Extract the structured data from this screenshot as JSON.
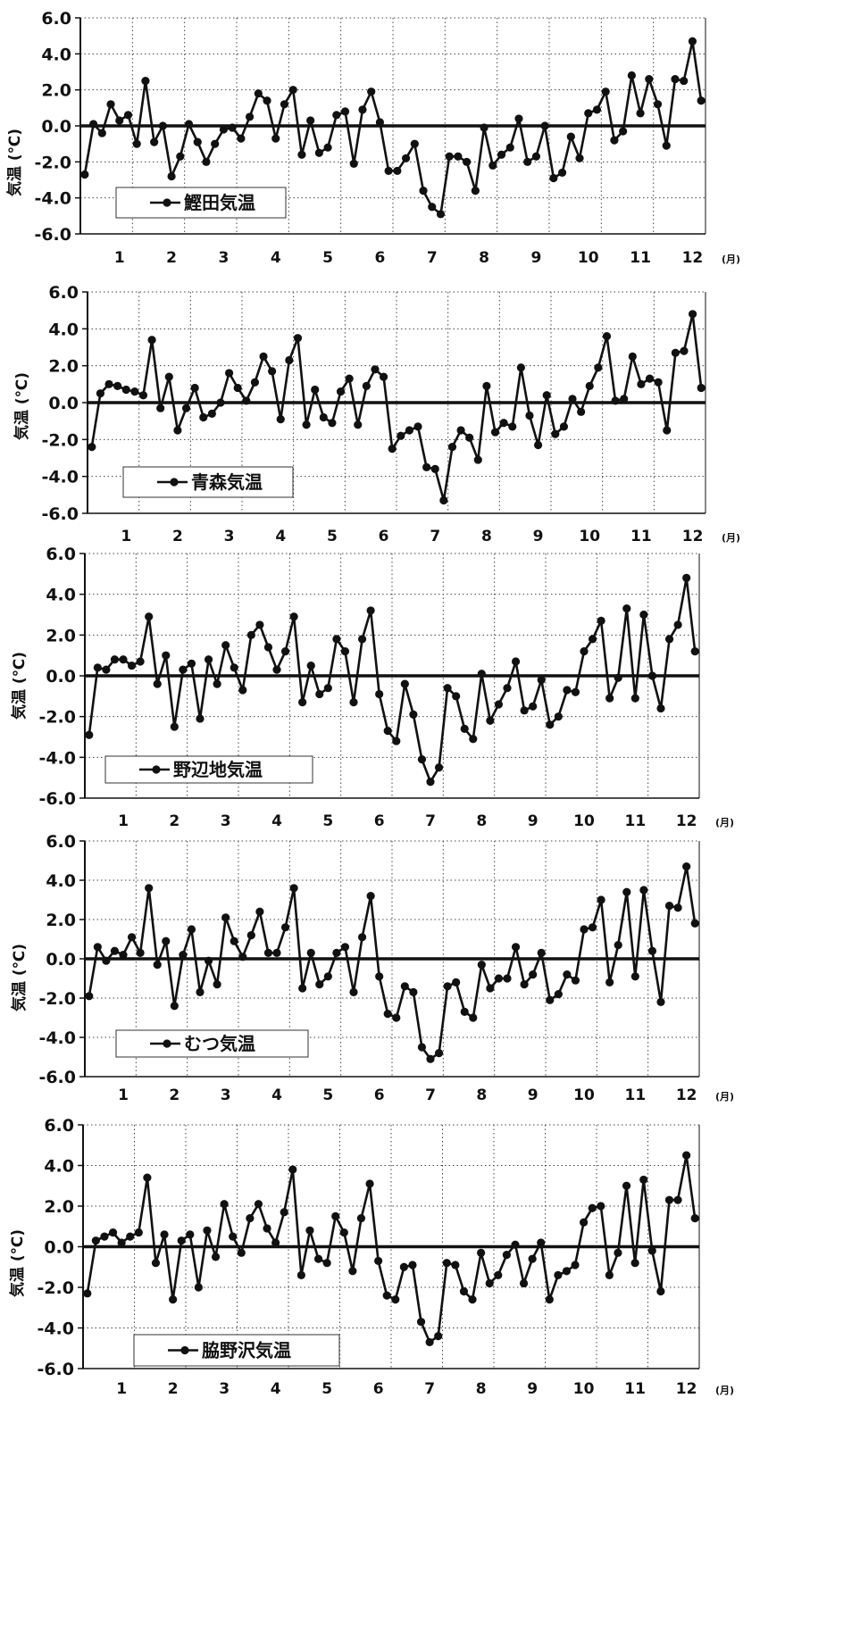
{
  "chart_data": [
    {
      "type": "line",
      "series": [
        {
          "name": "鰹田気温",
          "values": [
            -2.7,
            0.1,
            -0.4,
            1.2,
            0.3,
            0.6,
            -1.0,
            2.5,
            -0.9,
            0.0,
            -2.8,
            -1.7,
            0.1,
            -0.9,
            -2.0,
            -1.0,
            -0.2,
            -0.1,
            -0.7,
            0.5,
            1.8,
            1.4,
            -0.7,
            1.2,
            2.0,
            -1.6,
            0.3,
            -1.5,
            -1.2,
            0.6,
            0.8,
            -2.1,
            0.9,
            1.9,
            0.2,
            -2.5,
            -2.5,
            -1.8,
            -1.0,
            -3.6,
            -4.5,
            -4.9,
            -1.7,
            -1.7,
            -2.0,
            -3.6,
            -0.1,
            -2.2,
            -1.6,
            -1.2,
            0.4,
            -2.0,
            -1.7,
            0.0,
            -2.9,
            -2.6,
            -0.6,
            -1.8,
            0.7,
            0.9,
            1.9,
            -0.8,
            -0.3,
            2.8,
            0.7,
            2.6,
            1.2,
            -1.1,
            2.6,
            2.5,
            4.7,
            1.4
          ]
        }
      ],
      "x_tick_labels": [
        "1",
        "2",
        "3",
        "4",
        "5",
        "6",
        "7",
        "8",
        "9",
        "10",
        "11",
        "12"
      ],
      "x_unit": "(月)",
      "y_ticks": [
        "6.0",
        "4.0",
        "2.0",
        "0.0",
        "-2.0",
        "-4.0",
        "-6.0"
      ],
      "ylabel": "気温 (℃)",
      "ylim": [
        -6,
        6
      ],
      "legend": "鰹田気温",
      "grid": true
    },
    {
      "type": "line",
      "series": [
        {
          "name": "青森気温",
          "values": [
            -2.4,
            0.5,
            1.0,
            0.9,
            0.7,
            0.6,
            0.4,
            3.4,
            -0.3,
            1.4,
            -1.5,
            -0.3,
            0.8,
            -0.8,
            -0.6,
            0.0,
            1.6,
            0.8,
            0.1,
            1.1,
            2.5,
            1.7,
            -0.9,
            2.3,
            3.5,
            -1.2,
            0.7,
            -0.8,
            -1.1,
            0.6,
            1.3,
            -1.2,
            0.9,
            1.8,
            1.4,
            -2.5,
            -1.8,
            -1.5,
            -1.3,
            -3.5,
            -3.6,
            -5.3,
            -2.4,
            -1.5,
            -1.9,
            -3.1,
            0.9,
            -1.6,
            -1.1,
            -1.3,
            1.9,
            -0.7,
            -2.3,
            0.4,
            -1.7,
            -1.3,
            0.2,
            -0.5,
            0.9,
            1.9,
            3.6,
            0.1,
            0.2,
            2.5,
            1.0,
            1.3,
            1.1,
            -1.5,
            2.7,
            2.8,
            4.8,
            0.8
          ]
        }
      ],
      "x_tick_labels": [
        "1",
        "2",
        "3",
        "4",
        "5",
        "6",
        "7",
        "8",
        "9",
        "10",
        "11",
        "12"
      ],
      "x_unit": "(月)",
      "y_ticks": [
        "6.0",
        "4.0",
        "2.0",
        "0.0",
        "-2.0",
        "-4.0",
        "-6.0"
      ],
      "ylabel": "気温 (℃)",
      "ylim": [
        -6,
        6
      ],
      "legend": "青森気温",
      "grid": true
    },
    {
      "type": "line",
      "series": [
        {
          "name": "野辺地気温",
          "values": [
            -2.9,
            0.4,
            0.3,
            0.8,
            0.8,
            0.5,
            0.7,
            2.9,
            -0.4,
            1.0,
            -2.5,
            0.3,
            0.6,
            -2.1,
            0.8,
            -0.4,
            1.5,
            0.4,
            -0.7,
            2.0,
            2.5,
            1.4,
            0.3,
            1.2,
            2.9,
            -1.3,
            0.5,
            -0.9,
            -0.6,
            1.8,
            1.2,
            -1.3,
            1.8,
            3.2,
            -0.9,
            -2.7,
            -3.2,
            -0.4,
            -1.9,
            -4.1,
            -5.2,
            -4.5,
            -0.6,
            -1.0,
            -2.6,
            -3.1,
            0.1,
            -2.2,
            -1.4,
            -0.6,
            0.7,
            -1.7,
            -1.5,
            -0.2,
            -2.4,
            -2.0,
            -0.7,
            -0.8,
            1.2,
            1.8,
            2.7,
            -1.1,
            -0.1,
            3.3,
            -1.1,
            3.0,
            0.0,
            -1.6,
            1.8,
            2.5,
            4.8,
            1.2
          ]
        }
      ],
      "x_tick_labels": [
        "1",
        "2",
        "3",
        "4",
        "5",
        "6",
        "7",
        "8",
        "9",
        "10",
        "11",
        "12"
      ],
      "x_unit": "(月)",
      "y_ticks": [
        "6.0",
        "4.0",
        "2.0",
        "0.0",
        "-2.0",
        "-4.0",
        "-6.0"
      ],
      "ylabel": "気温 (℃)",
      "ylim": [
        -6,
        6
      ],
      "legend": "野辺地気温",
      "grid": true
    },
    {
      "type": "line",
      "series": [
        {
          "name": "むつ気温",
          "values": [
            -1.9,
            0.6,
            -0.1,
            0.4,
            0.2,
            1.1,
            0.3,
            3.6,
            -0.3,
            0.9,
            -2.4,
            0.2,
            1.5,
            -1.7,
            -0.1,
            -1.3,
            2.1,
            0.9,
            0.1,
            1.2,
            2.4,
            0.3,
            0.3,
            1.6,
            3.6,
            -1.5,
            0.3,
            -1.3,
            -0.9,
            0.3,
            0.6,
            -1.7,
            1.1,
            3.2,
            -0.9,
            -2.8,
            -3.0,
            -1.4,
            -1.7,
            -4.5,
            -5.1,
            -4.8,
            -1.4,
            -1.2,
            -2.7,
            -3.0,
            -0.3,
            -1.5,
            -1.0,
            -1.0,
            0.6,
            -1.3,
            -0.8,
            0.3,
            -2.1,
            -1.8,
            -0.8,
            -1.1,
            1.5,
            1.6,
            3.0,
            -1.2,
            0.7,
            3.4,
            -0.9,
            3.5,
            0.4,
            -2.2,
            2.7,
            2.6,
            4.7,
            1.8
          ]
        }
      ],
      "x_tick_labels": [
        "1",
        "2",
        "3",
        "4",
        "5",
        "6",
        "7",
        "8",
        "9",
        "10",
        "11",
        "12"
      ],
      "x_unit": "(月)",
      "y_ticks": [
        "6.0",
        "4.0",
        "2.0",
        "0.0",
        "-2.0",
        "-4.0",
        "-6.0"
      ],
      "ylabel": "気温 (℃)",
      "ylim": [
        -6,
        6
      ],
      "legend": "むつ気温",
      "grid": true
    },
    {
      "type": "line",
      "series": [
        {
          "name": "脇野沢気温",
          "values": [
            -2.3,
            0.3,
            0.5,
            0.7,
            0.2,
            0.5,
            0.7,
            3.4,
            -0.8,
            0.6,
            -2.6,
            0.3,
            0.6,
            -2.0,
            0.8,
            -0.5,
            2.1,
            0.5,
            -0.3,
            1.4,
            2.1,
            0.9,
            0.2,
            1.7,
            3.8,
            -1.4,
            0.8,
            -0.6,
            -0.8,
            1.5,
            0.7,
            -1.2,
            1.4,
            3.1,
            -0.7,
            -2.4,
            -2.6,
            -1.0,
            -0.9,
            -3.7,
            -4.7,
            -4.4,
            -0.8,
            -0.9,
            -2.2,
            -2.6,
            -0.3,
            -1.8,
            -1.4,
            -0.4,
            0.1,
            -1.8,
            -0.6,
            0.2,
            -2.6,
            -1.4,
            -1.2,
            -0.9,
            1.2,
            1.9,
            2.0,
            -1.4,
            -0.3,
            3.0,
            -0.8,
            3.3,
            -0.2,
            -2.2,
            2.3,
            2.3,
            4.5,
            1.4
          ]
        }
      ],
      "x_tick_labels": [
        "1",
        "2",
        "3",
        "4",
        "5",
        "6",
        "7",
        "8",
        "9",
        "10",
        "11",
        "12"
      ],
      "x_unit": "(月)",
      "y_ticks": [
        "6.0",
        "4.0",
        "2.0",
        "0.0",
        "-2.0",
        "-4.0",
        "-6.0"
      ],
      "ylabel": "気温 (℃)",
      "ylim": [
        -6,
        6
      ],
      "legend": "脇野沢気温",
      "grid": true
    }
  ]
}
